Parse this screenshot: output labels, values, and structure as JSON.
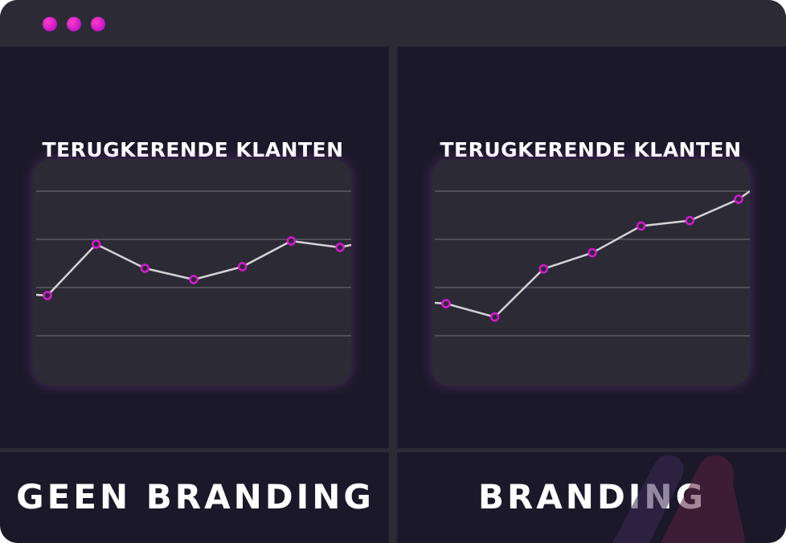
{
  "window": {
    "controls": [
      "close-dot",
      "minimize-dot",
      "maximize-dot"
    ],
    "accent_color": "#d41ad0"
  },
  "panels": [
    {
      "title": "TERUGKERENDE KLANTEN",
      "label": "GEEN BRANDING"
    },
    {
      "title": "TERUGKERENDE KLANTEN",
      "label": "BRANDING"
    }
  ],
  "chart_data": [
    {
      "type": "line",
      "title": "TERUGKERENDE KLANTEN",
      "x": [
        1,
        2,
        3,
        4,
        5,
        6,
        7
      ],
      "series": [
        {
          "values": [
            0.5,
            2.1,
            1.35,
            1.0,
            1.4,
            2.2,
            2.0
          ]
        }
      ],
      "ylim": [
        -1,
        4
      ],
      "grid": true,
      "line_color": "#d6d3d6",
      "marker_color": "#d41ad0"
    },
    {
      "type": "line",
      "title": "TERUGKERENDE KLANTEN",
      "x": [
        1,
        2,
        3,
        4,
        5,
        6,
        7
      ],
      "series": [
        {
          "values": [
            0.5,
            0.0,
            1.8,
            2.4,
            3.4,
            3.6,
            4.4
          ]
        }
      ],
      "ylim": [
        -1,
        5
      ],
      "grid": true,
      "line_color": "#d6d3d6",
      "marker_color": "#d41ad0"
    }
  ]
}
